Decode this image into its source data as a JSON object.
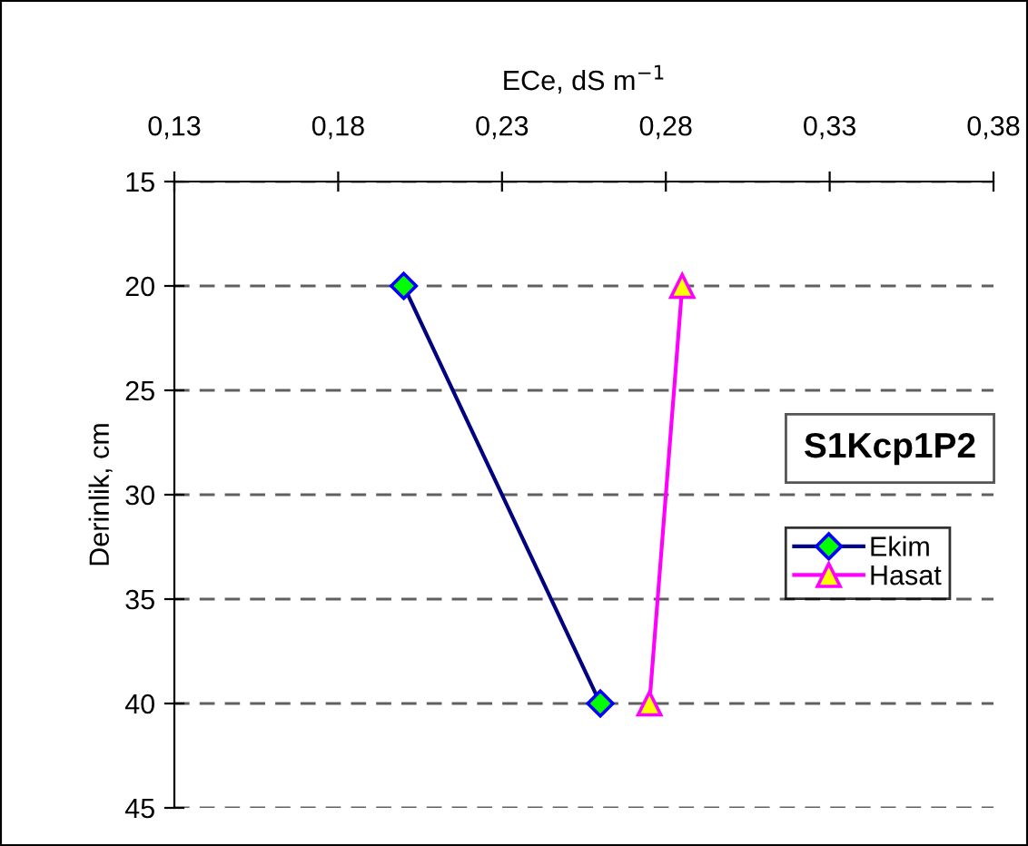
{
  "chart_data": {
    "type": "line",
    "title": "S1Kcp1P2",
    "xlabel": "ECe, dS m$^{−1}$",
    "ylabel": "Derinlik, cm",
    "xlim": [
      0.13,
      0.38
    ],
    "xticks": [
      {
        "value": 0.13,
        "label": "0,13"
      },
      {
        "value": 0.18,
        "label": "0,18"
      },
      {
        "value": 0.23,
        "label": "0,23"
      },
      {
        "value": 0.28,
        "label": "0,28"
      },
      {
        "value": 0.33,
        "label": "0,33"
      },
      {
        "value": 0.38,
        "label": "0,38"
      }
    ],
    "ylim": [
      45,
      15
    ],
    "yticks": [
      15,
      20,
      25,
      30,
      35,
      40,
      45
    ],
    "grid": "y",
    "legend": "right",
    "line_style": "solid",
    "series": [
      {
        "name": "Ekim",
        "color": "#000080",
        "marker": "diamond",
        "x": [
          0.2,
          0.26
        ],
        "values": [
          20,
          40
        ]
      },
      {
        "name": "Hasat",
        "color": "#ff00ff",
        "marker": "triangle",
        "x": [
          0.285,
          0.275
        ],
        "values": [
          20,
          40
        ]
      }
    ]
  }
}
